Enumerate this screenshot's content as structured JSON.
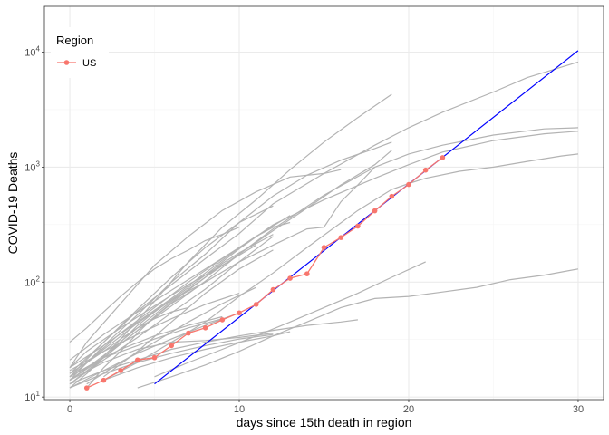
{
  "chart_data": {
    "type": "line",
    "xlabel": "days since 15th death in region",
    "ylabel": "COVID-19 Deaths",
    "xlim": [
      -1.5,
      31.5
    ],
    "ylim": [
      9.5,
      25000
    ],
    "y_scale": "log10",
    "x_ticks": [
      0,
      10,
      20,
      30
    ],
    "y_ticks": [
      {
        "value": 10,
        "base": "10",
        "exp": "1"
      },
      {
        "value": 100,
        "base": "10",
        "exp": "2"
      },
      {
        "value": 1000,
        "base": "10",
        "exp": "3"
      },
      {
        "value": 10000,
        "base": "10",
        "exp": "4"
      }
    ],
    "grid": true,
    "legend": {
      "title": "Region",
      "position": "top-left",
      "entries": [
        {
          "label": "US",
          "color": "#F8766D"
        }
      ]
    },
    "colors": {
      "highlight": "#F8766D",
      "background_series": "#b3b3b3",
      "reference_line": "#0000FF",
      "panel_border": "#333333",
      "grid_major": "#ebebeb",
      "grid_minor": "#f5f5f5"
    },
    "highlight_series": {
      "name": "US",
      "x": [
        1,
        2,
        3,
        4,
        5,
        6,
        7,
        8,
        9,
        10,
        11,
        12,
        13,
        14,
        15,
        16,
        17,
        18,
        19,
        20,
        21,
        22
      ],
      "y": [
        12,
        14,
        17,
        21,
        22,
        28,
        36,
        40,
        47,
        54,
        64,
        86,
        108,
        118,
        200,
        244,
        307,
        417,
        557,
        706,
        942,
        1209
      ]
    },
    "reference_line": {
      "x": [
        5,
        30
      ],
      "y": [
        13,
        10300
      ]
    },
    "other_series": [
      {
        "x": [
          0,
          2,
          4,
          6,
          8,
          10,
          12,
          15,
          18,
          20,
          22,
          25,
          28,
          30
        ],
        "y": [
          15,
          26,
          44,
          70,
          115,
          195,
          315,
          520,
          800,
          1050,
          1350,
          1700,
          1950,
          2050
        ]
      },
      {
        "x": [
          0,
          2,
          4,
          6,
          8,
          10,
          12,
          15,
          18,
          20,
          22,
          25,
          28,
          30
        ],
        "y": [
          13,
          22,
          38,
          62,
          102,
          175,
          290,
          570,
          1000,
          1300,
          1550,
          1900,
          2150,
          2200
        ]
      },
      {
        "x": [
          0,
          2,
          4,
          6,
          8,
          10,
          12,
          15,
          18,
          20,
          22,
          25,
          27,
          30
        ],
        "y": [
          16,
          30,
          56,
          95,
          160,
          265,
          480,
          880,
          1550,
          2200,
          3000,
          4500,
          6000,
          8200
        ]
      },
      {
        "x": [
          1,
          3,
          5,
          7,
          9,
          11,
          13,
          15,
          17,
          19
        ],
        "y": [
          16,
          32,
          68,
          150,
          300,
          520,
          950,
          1650,
          2700,
          4300
        ]
      },
      {
        "x": [
          0,
          2,
          4,
          6,
          8,
          10,
          12,
          14,
          16,
          18,
          19
        ],
        "y": [
          15,
          30,
          58,
          110,
          200,
          330,
          560,
          850,
          1150,
          1450,
          1650
        ]
      },
      {
        "x": [
          0,
          1,
          3,
          5,
          7,
          9,
          11,
          13,
          15,
          16
        ],
        "y": [
          18,
          30,
          65,
          140,
          250,
          420,
          610,
          820,
          880,
          950
        ]
      },
      {
        "x": [
          0,
          2,
          4,
          6,
          8,
          10,
          12,
          14,
          16,
          18,
          19
        ],
        "y": [
          14,
          23,
          40,
          68,
          110,
          175,
          280,
          440,
          700,
          1050,
          1400
        ]
      },
      {
        "x": [
          0,
          2,
          4,
          6,
          8,
          10,
          12,
          14,
          15,
          16,
          17,
          18
        ],
        "y": [
          14,
          22,
          38,
          65,
          100,
          150,
          210,
          290,
          300,
          500,
          700,
          1000
        ]
      },
      {
        "x": [
          2,
          4,
          6,
          8,
          10,
          12,
          14,
          17,
          19,
          20,
          21,
          23,
          25,
          27,
          29,
          30
        ],
        "y": [
          14,
          20,
          30,
          45,
          75,
          120,
          200,
          420,
          640,
          720,
          800,
          920,
          1000,
          1120,
          1250,
          1300
        ]
      },
      {
        "x": [
          4,
          6,
          8,
          10,
          12,
          14,
          16,
          18,
          20,
          22,
          24,
          26,
          28,
          30
        ],
        "y": [
          12,
          15,
          19,
          25,
          34,
          45,
          60,
          72,
          75,
          82,
          90,
          105,
          115,
          130
        ]
      },
      {
        "x": [
          0,
          2,
          4,
          6,
          8,
          10,
          12,
          14,
          16,
          17
        ],
        "y": [
          13,
          17,
          21,
          26,
          30,
          34,
          38,
          42,
          45,
          47
        ]
      },
      {
        "x": [
          2,
          4,
          6,
          8,
          10,
          12,
          13
        ],
        "y": [
          14,
          18,
          22,
          26,
          30,
          34,
          37
        ]
      },
      {
        "x": [
          0,
          2,
          4,
          6,
          8,
          10,
          12
        ],
        "y": [
          12,
          16,
          20,
          24,
          28,
          32,
          35
        ]
      },
      {
        "x": [
          0,
          2,
          4,
          6,
          8,
          10,
          12
        ],
        "y": [
          14,
          20,
          26,
          30,
          31,
          33,
          36
        ]
      },
      {
        "x": [
          0,
          1,
          3,
          5,
          7,
          9,
          11
        ],
        "y": [
          18,
          25,
          40,
          62,
          95,
          140,
          210
        ]
      },
      {
        "x": [
          1,
          3,
          5,
          7,
          9,
          11,
          13
        ],
        "y": [
          20,
          36,
          60,
          100,
          160,
          250,
          380
        ]
      },
      {
        "x": [
          0,
          2,
          4,
          6,
          8,
          10,
          12
        ],
        "y": [
          14,
          28,
          52,
          100,
          175,
          330,
          460
        ]
      },
      {
        "x": [
          0,
          2,
          4,
          6,
          8,
          10,
          12
        ],
        "y": [
          13,
          21,
          33,
          54,
          87,
          150,
          250
        ]
      },
      {
        "x": [
          0,
          2,
          4,
          6,
          8,
          10,
          11
        ],
        "y": [
          21,
          35,
          55,
          85,
          130,
          200,
          250
        ]
      },
      {
        "x": [
          0,
          1,
          2,
          3,
          4,
          5,
          6,
          7,
          8,
          9,
          10
        ],
        "y": [
          30,
          40,
          55,
          75,
          100,
          130,
          160,
          190,
          230,
          260,
          300
        ]
      },
      {
        "x": [
          0,
          2,
          4,
          6,
          8,
          10
        ],
        "y": [
          12,
          17,
          24,
          32,
          42,
          54
        ]
      },
      {
        "x": [
          1,
          3,
          5,
          7,
          9,
          11
        ],
        "y": [
          13,
          20,
          30,
          45,
          65,
          90
        ]
      },
      {
        "x": [
          0,
          2,
          4,
          6,
          8,
          10
        ],
        "y": [
          17,
          25,
          35,
          48,
          64,
          80
        ]
      },
      {
        "x": [
          0,
          2,
          3,
          5,
          7,
          9
        ],
        "y": [
          15,
          22,
          26,
          34,
          42,
          50
        ]
      },
      {
        "x": [
          2,
          4,
          6,
          8,
          10,
          12
        ],
        "y": [
          15,
          25,
          45,
          80,
          130,
          190
        ]
      },
      {
        "x": [
          0,
          1,
          2,
          3,
          4,
          5,
          6,
          7
        ],
        "y": [
          16,
          20,
          25,
          32,
          40,
          48,
          55,
          60
        ]
      },
      {
        "x": [
          0,
          1,
          2,
          3,
          4,
          5,
          6,
          8
        ],
        "y": [
          12,
          16,
          22,
          30,
          42,
          55,
          70,
          100
        ]
      },
      {
        "x": [
          1,
          2,
          3,
          4,
          5,
          6,
          7,
          8,
          9,
          10,
          12
        ],
        "y": [
          12,
          18,
          25,
          36,
          50,
          66,
          85,
          110,
          145,
          180,
          260
        ]
      },
      {
        "x": [
          0,
          2,
          4,
          6,
          8,
          10,
          11,
          12,
          13
        ],
        "y": [
          18,
          28,
          45,
          72,
          120,
          200,
          250,
          300,
          330
        ]
      },
      {
        "x": [
          0,
          2,
          4,
          5,
          7,
          9
        ],
        "y": [
          15,
          22,
          28,
          32,
          40,
          48
        ]
      },
      {
        "x": [
          5,
          7,
          9,
          11,
          13,
          15,
          17,
          19,
          21
        ],
        "y": [
          15,
          20,
          26,
          34,
          45,
          60,
          80,
          110,
          150
        ]
      }
    ]
  }
}
